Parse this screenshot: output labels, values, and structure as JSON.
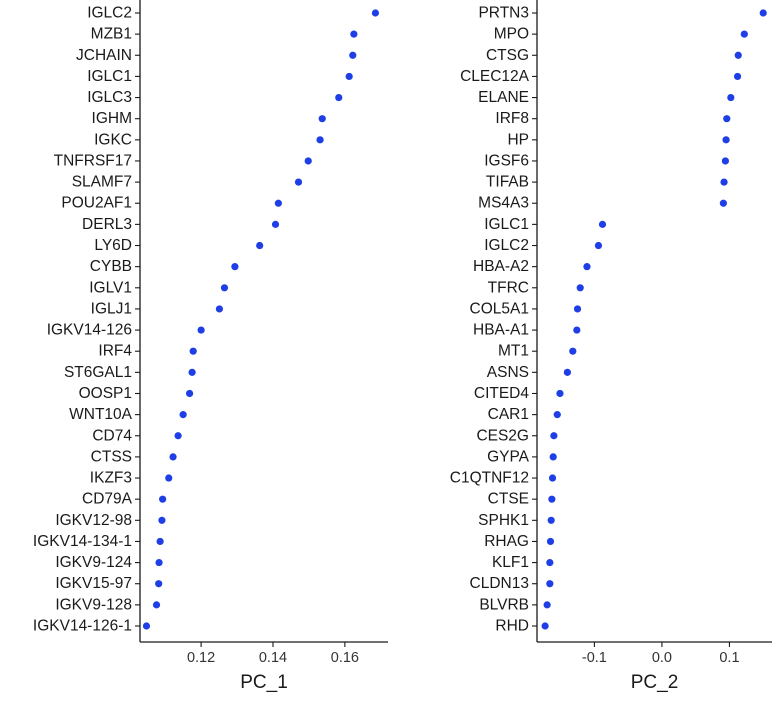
{
  "colors": {
    "point": "#1f3fe6",
    "axis": "#1a1a1a",
    "text": "#1a1a1a"
  },
  "chart_data": [
    {
      "type": "scatter",
      "xlabel": "PC_1",
      "xlim": [
        0.103,
        0.172
      ],
      "xticks": [
        0.12,
        0.14,
        0.16
      ],
      "xtick_labels": [
        "0.12",
        "0.14",
        "0.16"
      ],
      "grid": false,
      "categories": [
        "IGLC2",
        "MZB1",
        "JCHAIN",
        "IGLC1",
        "IGLC3",
        "IGHM",
        "IGKC",
        "TNFRSF17",
        "SLAMF7",
        "POU2AF1",
        "DERL3",
        "LY6D",
        "CYBB",
        "IGLV1",
        "IGLJ1",
        "IGKV14-126",
        "IRF4",
        "ST6GAL1",
        "OOSP1",
        "WNT10A",
        "CD74",
        "CTSS",
        "IKZF3",
        "CD79A",
        "IGKV12-98",
        "IGKV14-134-1",
        "IGKV9-124",
        "IGKV15-97",
        "IGKV9-128",
        "IGKV14-126-1"
      ],
      "values": [
        0.1685,
        0.1625,
        0.1622,
        0.1612,
        0.1583,
        0.1537,
        0.1531,
        0.1498,
        0.1471,
        0.1415,
        0.1407,
        0.1363,
        0.1294,
        0.1265,
        0.1251,
        0.12,
        0.1178,
        0.1175,
        0.1168,
        0.115,
        0.1136,
        0.1122,
        0.111,
        0.1093,
        0.1091,
        0.1086,
        0.1083,
        0.1082,
        0.1076,
        0.1048
      ]
    },
    {
      "type": "scatter",
      "xlabel": "PC_2",
      "xlim": [
        -0.185,
        0.163
      ],
      "xticks": [
        -0.1,
        0.0,
        0.1
      ],
      "xtick_labels": [
        "-0.1",
        "0.0",
        "0.1"
      ],
      "grid": false,
      "categories": [
        "PRTN3",
        "MPO",
        "CTSG",
        "CLEC12A",
        "ELANE",
        "IRF8",
        "HP",
        "IGSF6",
        "TIFAB",
        "MS4A3",
        "IGLC1",
        "IGLC2",
        "HBA-A2",
        "TFRC",
        "COL5A1",
        "HBA-A1",
        "MT1",
        "ASNS",
        "CITED4",
        "CAR1",
        "CES2G",
        "GYPA",
        "C1QTNF12",
        "CTSE",
        "SPHK1",
        "RHAG",
        "KLF1",
        "CLDN13",
        "BLVRB",
        "RHD"
      ],
      "values": [
        0.15,
        0.122,
        0.113,
        0.112,
        0.102,
        0.096,
        0.095,
        0.094,
        0.092,
        0.091,
        -0.088,
        -0.094,
        -0.111,
        -0.121,
        -0.125,
        -0.126,
        -0.132,
        -0.14,
        -0.151,
        -0.155,
        -0.16,
        -0.161,
        -0.162,
        -0.163,
        -0.164,
        -0.165,
        -0.166,
        -0.166,
        -0.17,
        -0.173
      ]
    }
  ]
}
